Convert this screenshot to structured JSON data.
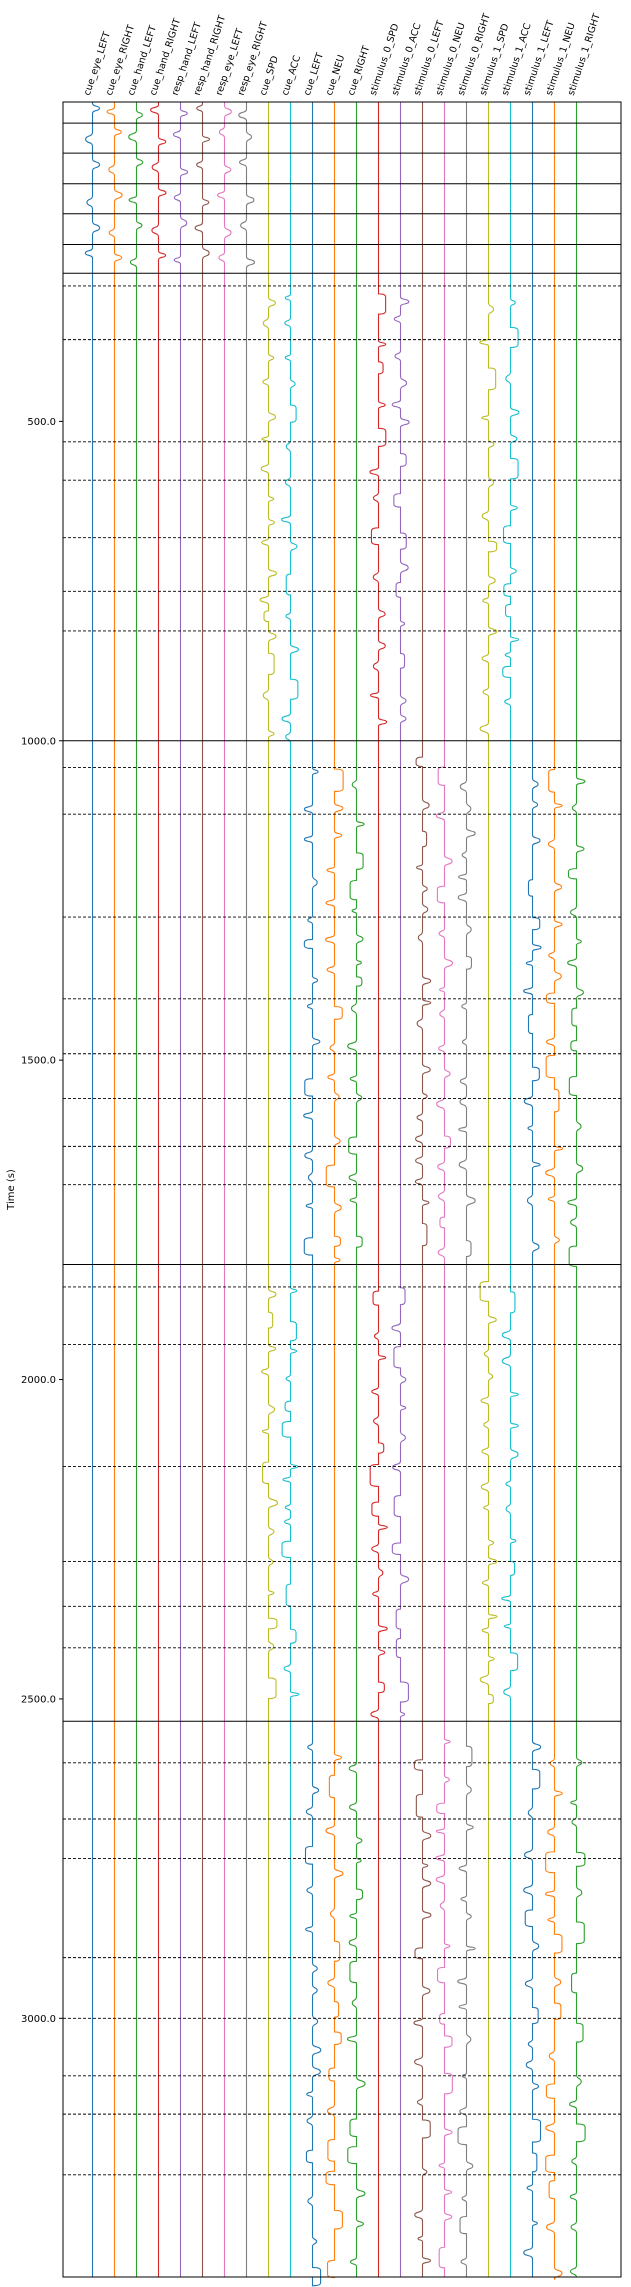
{
  "chart_data": {
    "type": "line",
    "title": "",
    "ylabel": "Time (s)",
    "ylim": [
      0,
      3405
    ],
    "y_ticks": [
      "500.0",
      "1000.0",
      "1500.0",
      "2000.0",
      "2500.0",
      "3000.0"
    ],
    "y_tick_values": [
      500,
      1000,
      1500,
      2000,
      2500,
      3000
    ],
    "grid": false,
    "series": [
      {
        "name": "cue_eye_LEFT",
        "color": "#1f77b4"
      },
      {
        "name": "cue_eye_RIGHT",
        "color": "#ff7f0e"
      },
      {
        "name": "cue_hand_LEFT",
        "color": "#2ca02c"
      },
      {
        "name": "cue_hand_RIGHT",
        "color": "#d62728"
      },
      {
        "name": "resp_hand_LEFT",
        "color": "#9467bd"
      },
      {
        "name": "resp_hand_RIGHT",
        "color": "#8c564b"
      },
      {
        "name": "resp_eye_LEFT",
        "color": "#e377c2"
      },
      {
        "name": "resp_eye_RIGHT",
        "color": "#7f7f7f"
      },
      {
        "name": "cue_SPD",
        "color": "#bcbd22"
      },
      {
        "name": "cue_ACC",
        "color": "#17becf"
      },
      {
        "name": "cue_LEFT",
        "color": "#1f77b4"
      },
      {
        "name": "cue_NEU",
        "color": "#ff7f0e"
      },
      {
        "name": "cue_RIGHT",
        "color": "#2ca02c"
      },
      {
        "name": "stimulus_0_SPD",
        "color": "#d62728"
      },
      {
        "name": "stimulus_0_ACC",
        "color": "#9467bd"
      },
      {
        "name": "stimulus_0_LEFT",
        "color": "#8c564b"
      },
      {
        "name": "stimulus_0_NEU",
        "color": "#e377c2"
      },
      {
        "name": "stimulus_0_RIGHT",
        "color": "#7f7f7f"
      },
      {
        "name": "stimulus_1_SPD",
        "color": "#bcbd22"
      },
      {
        "name": "stimulus_1_ACC",
        "color": "#17becf"
      },
      {
        "name": "stimulus_1_LEFT",
        "color": "#1f77b4"
      },
      {
        "name": "stimulus_1_NEU",
        "color": "#ff7f0e"
      },
      {
        "name": "stimulus_1_RIGHT",
        "color": "#2ca02c"
      }
    ],
    "run_boundaries": [
      0,
      33,
      80,
      128,
      175,
      223,
      268,
      1000,
      1820,
      2535,
      3405
    ],
    "block_boundaries": [
      288,
      372,
      532,
      592,
      682,
      766,
      828,
      1042,
      1115,
      1276,
      1404,
      1490,
      1560,
      1635,
      1695,
      1855,
      1945,
      2136,
      2285,
      2355,
      2420,
      2600,
      2688,
      2750,
      2905,
      3000,
      3090,
      3150,
      3245
    ],
    "segments": [
      {
        "y0": 0,
        "y1": 268,
        "type": "pretrain",
        "channels": [
          "cue_eye_LEFT",
          "cue_eye_RIGHT",
          "cue_hand_LEFT",
          "cue_hand_RIGHT",
          "resp_hand_LEFT",
          "resp_hand_RIGHT",
          "resp_eye_LEFT",
          "resp_eye_RIGHT"
        ]
      },
      {
        "y0": 268,
        "y1": 1000,
        "type": "spd_acc",
        "channels": [
          "cue_SPD",
          "cue_ACC",
          "stimulus_0_SPD",
          "stimulus_0_ACC",
          "stimulus_1_SPD",
          "stimulus_1_ACC"
        ]
      },
      {
        "y0": 1000,
        "y1": 1820,
        "type": "lnr",
        "channels": [
          "cue_LEFT",
          "cue_NEU",
          "cue_RIGHT",
          "stimulus_0_LEFT",
          "stimulus_0_NEU",
          "stimulus_0_RIGHT",
          "stimulus_1_LEFT",
          "stimulus_1_NEU",
          "stimulus_1_RIGHT"
        ]
      },
      {
        "y0": 1820,
        "y1": 2535,
        "type": "spd_acc",
        "channels": [
          "cue_SPD",
          "cue_ACC",
          "stimulus_0_SPD",
          "stimulus_0_ACC",
          "stimulus_1_SPD",
          "stimulus_1_ACC"
        ]
      },
      {
        "y0": 2535,
        "y1": 3405,
        "type": "lnr",
        "channels": [
          "cue_LEFT",
          "cue_NEU",
          "cue_RIGHT",
          "stimulus_0_LEFT",
          "stimulus_0_NEU",
          "stimulus_0_RIGHT",
          "stimulus_1_LEFT",
          "stimulus_1_NEU",
          "stimulus_1_RIGHT"
        ]
      }
    ]
  }
}
